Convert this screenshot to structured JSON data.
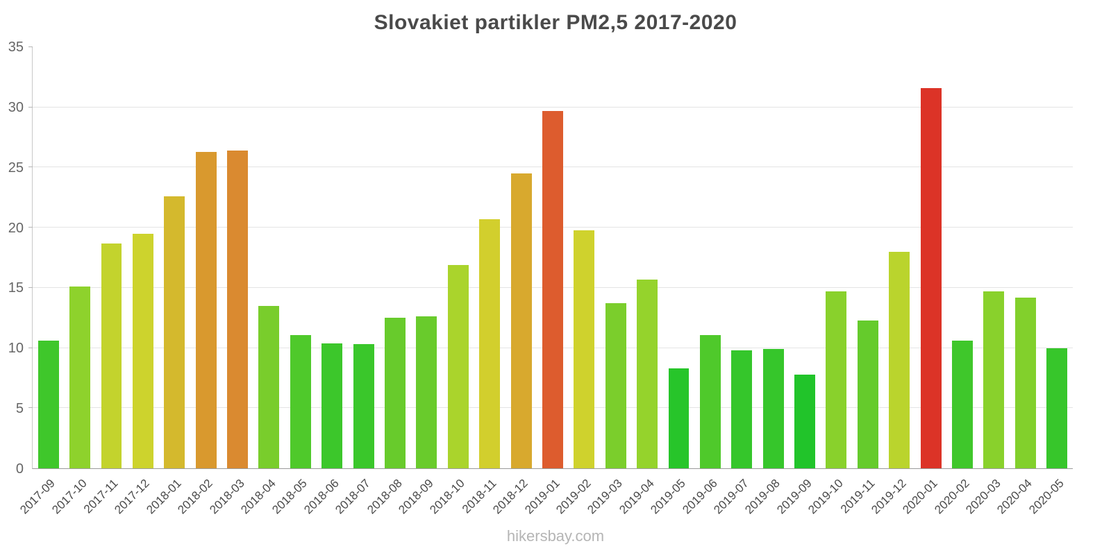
{
  "chart_data": {
    "type": "bar",
    "title": "Slovakiet partikler PM2,5 2017-2020",
    "watermark": "hikersbay.com",
    "xlabel": "",
    "ylabel": "",
    "ylim": [
      0,
      35
    ],
    "yticks": [
      0,
      5,
      10,
      15,
      20,
      25,
      30,
      35
    ],
    "grid": true,
    "legend": false,
    "categories": [
      "2017-09",
      "2017-10",
      "2017-11",
      "2017-12",
      "2018-01",
      "2018-02",
      "2018-03",
      "2018-04",
      "2018-05",
      "2018-06",
      "2018-07",
      "2018-08",
      "2018-09",
      "2018-10",
      "2018-11",
      "2018-12",
      "2019-01",
      "2019-02",
      "2019-03",
      "2019-04",
      "2019-05",
      "2019-06",
      "2019-07",
      "2019-08",
      "2019-09",
      "2019-10",
      "2019-11",
      "2019-12",
      "2020-01",
      "2020-02",
      "2020-03",
      "2020-04",
      "2020-05"
    ],
    "values": [
      10.6,
      15.1,
      18.7,
      19.5,
      22.6,
      26.3,
      26.4,
      13.5,
      11.1,
      10.4,
      10.3,
      12.5,
      12.6,
      16.9,
      20.7,
      24.5,
      29.7,
      19.8,
      13.7,
      15.7,
      8.3,
      11.1,
      9.8,
      9.9,
      7.8,
      14.7,
      12.3,
      18.0,
      31.6,
      10.6,
      14.7,
      14.2,
      10.0
    ],
    "colors": [
      "#3fc72b",
      "#8ed22c",
      "#c3d32d",
      "#cdd32d",
      "#d4b92d",
      "#d9992e",
      "#da8a30",
      "#79cd2c",
      "#4fc92b",
      "#3cc72b",
      "#3ac72b",
      "#68cb2c",
      "#69cb2c",
      "#aad42c",
      "#d2cf2d",
      "#d8a92e",
      "#dd5c2e",
      "#cfd22d",
      "#7bce2c",
      "#95d32c",
      "#27c52a",
      "#4fc92b",
      "#35c62b",
      "#36c62b",
      "#21c42a",
      "#89d12c",
      "#65cb2c",
      "#bad42d",
      "#dc3327",
      "#3fc72b",
      "#89d12c",
      "#82d02c",
      "#37c62b"
    ]
  }
}
